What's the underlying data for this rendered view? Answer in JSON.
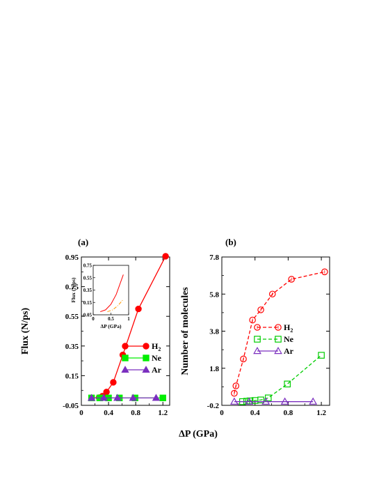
{
  "figure": {
    "shared_xlabel": "ΔP (GPa)"
  },
  "chart_data": [
    {
      "id": "a",
      "type": "line",
      "panel_label": "(a)",
      "ylabel": "Flux (N/ps)",
      "xlim": [
        0,
        1.3
      ],
      "ylim": [
        -0.05,
        0.95
      ],
      "xticks": [
        "0",
        "0.4",
        "0.8",
        "1.2"
      ],
      "xtick_values": [
        0,
        0.4,
        0.8,
        1.2
      ],
      "yticks": [
        "-0.05",
        "0.15",
        "0.35",
        "0.55",
        "0.75",
        "0.95"
      ],
      "ytick_values": [
        -0.05,
        0.15,
        0.35,
        0.55,
        0.75,
        0.95
      ],
      "legend_position": "center-right",
      "series": [
        {
          "name": "H2",
          "name_base": "H",
          "name_sub": "2",
          "color": "#ff0000",
          "marker": "filled-circle",
          "line": "solid",
          "x": [
            0.15,
            0.26,
            0.31,
            0.37,
            0.47,
            0.61,
            0.84,
            1.24
          ],
          "y": [
            0.0,
            0.002,
            0.012,
            0.04,
            0.105,
            0.29,
            0.6,
            0.955
          ]
        },
        {
          "name": "Ne",
          "color": "#00ee00",
          "marker": "filled-square",
          "line": "solid",
          "x": [
            0.15,
            0.27,
            0.4,
            0.56,
            0.79,
            1.2
          ],
          "y": [
            0.0,
            0.0,
            0.0,
            0.0,
            0.0,
            0.0
          ]
        },
        {
          "name": "Ar",
          "color": "#7b2fbf",
          "marker": "filled-triangle",
          "line": "solid",
          "x": [
            0.15,
            0.33,
            0.53,
            0.76,
            1.1
          ],
          "y": [
            0.0,
            0.0,
            0.0,
            0.0,
            0.0
          ]
        }
      ],
      "inset": {
        "xlabel": "ΔP (GPa)",
        "ylabel": "Flux (N/ps)",
        "xlim": [
          0,
          1.0
        ],
        "ylim": [
          -0.05,
          0.75
        ],
        "xticks": [
          "0",
          "0.5",
          "1"
        ],
        "xtick_values": [
          0,
          0.5,
          1.0
        ],
        "yticks": [
          "-0.05",
          "0.15",
          "0.35",
          "0.55",
          "0.75"
        ],
        "ytick_values": [
          -0.05,
          0.15,
          0.35,
          0.55,
          0.75
        ],
        "series": [
          {
            "color": "#ff0000",
            "line": "solid",
            "x": [
              0.2,
              0.35,
              0.5,
              0.65,
              0.85
            ],
            "y": [
              0.0,
              0.03,
              0.12,
              0.28,
              0.6
            ]
          },
          {
            "color": "#ff9900",
            "line": "dashdot",
            "x": [
              0.4,
              0.55,
              0.7,
              0.85
            ],
            "y": [
              0.0,
              0.03,
              0.1,
              0.2
            ]
          }
        ]
      }
    },
    {
      "id": "b",
      "type": "line",
      "panel_label": "(b)",
      "ylabel": "Number of molecules",
      "xlim": [
        0,
        1.3
      ],
      "ylim": [
        -0.2,
        7.8
      ],
      "xticks": [
        "0",
        "0.4",
        "0.8",
        "1.2"
      ],
      "xtick_values": [
        0,
        0.4,
        0.8,
        1.2
      ],
      "yticks": [
        "-0.2",
        "1.8",
        "3.8",
        "5.8",
        "7.8"
      ],
      "ytick_values": [
        -0.2,
        1.8,
        3.8,
        5.8,
        7.8
      ],
      "legend_position": "center-right",
      "series": [
        {
          "name": "H2",
          "name_base": "H",
          "name_sub": "2",
          "color": "#ff0000",
          "marker": "open-circle",
          "line": "dashed",
          "x": [
            0.15,
            0.17,
            0.26,
            0.37,
            0.47,
            0.61,
            0.84,
            1.24
          ],
          "y": [
            0.45,
            0.85,
            2.3,
            4.4,
            4.95,
            5.8,
            6.6,
            7.0
          ]
        },
        {
          "name": "Ne",
          "color": "#00cc00",
          "marker": "open-square",
          "line": "dashed",
          "x": [
            0.25,
            0.3,
            0.34,
            0.4,
            0.47,
            0.56,
            0.79,
            1.2
          ],
          "y": [
            0.0,
            0.02,
            0.04,
            0.06,
            0.09,
            0.2,
            0.95,
            2.5
          ]
        },
        {
          "name": "Ar",
          "color": "#7b2fbf",
          "marker": "open-triangle",
          "line": "solid",
          "x": [
            0.15,
            0.33,
            0.53,
            0.76,
            1.1
          ],
          "y": [
            0.0,
            0.0,
            0.0,
            0.0,
            0.0
          ]
        }
      ]
    }
  ]
}
